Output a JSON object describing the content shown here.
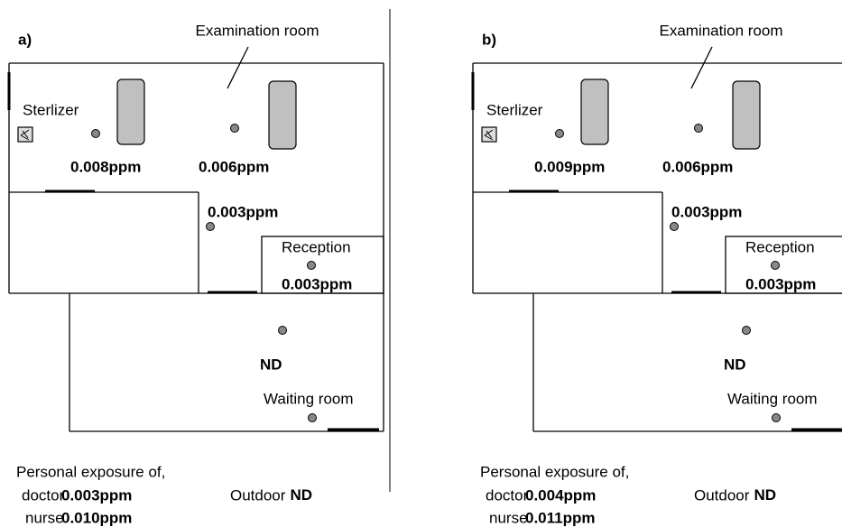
{
  "panels": [
    {
      "label": "a)",
      "room": "Examination room",
      "sterilizer": "Sterlizer",
      "readings": {
        "sterilizer_side": "0.008ppm",
        "exam_right": "0.006ppm",
        "corridor": "0.003ppm",
        "reception": "0.003ppm",
        "waiting": "ND"
      },
      "reception_label": "Reception",
      "waiting_label": "Waiting room",
      "personal": {
        "title": "Personal exposure of,",
        "doctor": "doctor",
        "doctor_value": "0.003ppm",
        "nurse": "nurse",
        "nurse_value": "0.010ppm"
      },
      "outdoor": {
        "label": "Outdoor",
        "value": "ND"
      }
    },
    {
      "label": "b)",
      "room": "Examination room",
      "sterilizer": "Sterlizer",
      "readings": {
        "sterilizer_side": "0.009ppm",
        "exam_right": "0.006ppm",
        "corridor": "0.003ppm",
        "reception": "0.003ppm",
        "waiting": "ND"
      },
      "reception_label": "Reception",
      "waiting_label": "Waiting room",
      "personal": {
        "title": "Personal exposure of,",
        "doctor": "doctor",
        "doctor_value": "0.004ppm",
        "nurse": "nurse",
        "nurse_value": "0.011ppm"
      },
      "outdoor": {
        "label": "Outdoor",
        "value": "ND"
      }
    }
  ]
}
